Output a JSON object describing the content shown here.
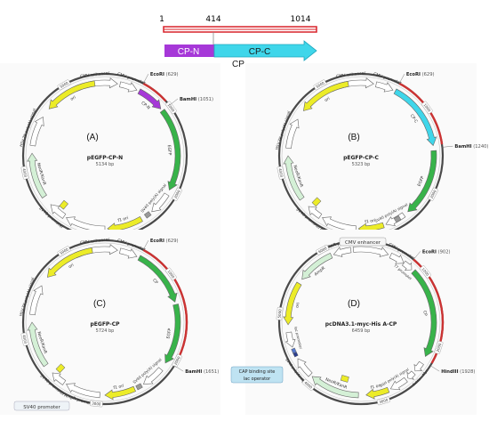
{
  "header": {
    "positions": [
      "1",
      "414",
      "1014"
    ],
    "segment_n": "CP-N",
    "segment_c": "CP-C",
    "caption": "CP"
  },
  "colors": {
    "red_line": "#d8222a",
    "cp_n": "#a638d8",
    "cp_c": "#3fd6ea",
    "backbone": "#4a4a4a",
    "egfp": "#38b34a",
    "yellow": "#ecec28",
    "mint": "#d4f0d6",
    "white_feature": "#ffffff",
    "red_arc": "#cc3333"
  },
  "plasmids": [
    {
      "letter": "(A)",
      "name": "pEGFP-CP-N",
      "size": "5134 bp",
      "sites": [
        {
          "name": "EcoRI",
          "pos": "(629)"
        },
        {
          "name": "BamHI",
          "pos": "(1051)"
        }
      ],
      "features": {
        "cmv": "CMV enhancer",
        "cmvp": "CMV promoter",
        "insert": "CP-N",
        "egfp": "EGFP",
        "polya": "SV40 poly(A) signal",
        "f1": "f1 ori",
        "amp": "AmpR promoter",
        "sv40p": "SV40 promoter",
        "sv40ori": "SV40 ori",
        "neo": "NeoR/KanR",
        "hsv": "HSV TK poly(A) signal",
        "ori": "ori",
        "ticks": [
          "1000",
          "2000",
          "3000",
          "4000",
          "5000"
        ]
      }
    },
    {
      "letter": "(B)",
      "name": "pEGFP-CP-C",
      "size": "5323 bp",
      "sites": [
        {
          "name": "EcoRI",
          "pos": "(629)"
        },
        {
          "name": "BamHI",
          "pos": "(1240)"
        }
      ],
      "features": {
        "cmv": "CMV enhancer",
        "cmvp": "CMV promoter",
        "insert": "CP-C",
        "egfp": "EGFP",
        "polya": "SV40 poly(A) signal",
        "f1": "f1 ori",
        "amp": "AmpR promoter",
        "sv40p": "SV40 promoter",
        "sv40ori": "SV40 ori",
        "neo": "NeoR/KanR",
        "hsv": "HSV TK poly(A) signal",
        "ori": "ori",
        "ticks": [
          "1000",
          "2000",
          "3000",
          "4000",
          "5000"
        ]
      }
    },
    {
      "letter": "(C)",
      "name": "pEGFP-CP",
      "size": "5724 bp",
      "sites": [
        {
          "name": "EcoRI",
          "pos": "(629)"
        },
        {
          "name": "BamHI",
          "pos": "(1651)"
        }
      ],
      "features": {
        "cmv": "CMV enhancer",
        "cmvp": "CMV promoter",
        "insert": "CP",
        "egfp": "EGFP",
        "polya": "SV40 poly(A) signal",
        "f1": "f1 ori",
        "amp": "AmpR promoter",
        "sv40p": "SV40 promoter",
        "sv40ori": "SV40 ori",
        "neo": "NeoR/KanR",
        "hsv": "HSV TK poly(A) signal",
        "ori": "ori",
        "ticks": [
          "1000",
          "2000",
          "3000",
          "4000",
          "5000"
        ]
      }
    },
    {
      "letter": "(D)",
      "name": "pcDNA3.1-myc-His A-CP",
      "size": "6459 bp",
      "sites": [
        {
          "name": "EcoRI",
          "pos": "(902)"
        },
        {
          "name": "HindIII",
          "pos": "(1928)"
        }
      ],
      "features": {
        "cmv": "CMV enhancer",
        "cmvp": "CMV promoter",
        "t7": "T7 promoter",
        "insert": "CP",
        "myc": "Myc",
        "his": "6xHis",
        "bgh": "bGH poly(A) signal",
        "f1": "f1 ori",
        "sv40ori": "SV40 ori",
        "neo": "NeoR/KanR",
        "polya": "SV40 poly(A) signal",
        "cap": "CAP binding site",
        "lac": "lac operator",
        "lacp": "lac promoter",
        "ori": "ori",
        "amp": "AmpR",
        "ampp": "AmpR promoter",
        "ticks": [
          "1000",
          "2000",
          "3000",
          "4000",
          "5000",
          "6000"
        ]
      }
    }
  ],
  "callouts": {
    "sv40_promoter": "SV40 promoter",
    "cmv_enhancer": "CMV enhancer",
    "cap_binding": "CAP binding site",
    "lac_operator": "lac operator"
  }
}
